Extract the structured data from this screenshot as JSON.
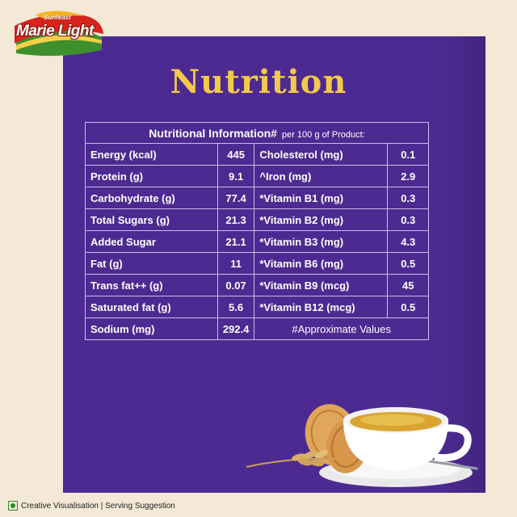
{
  "logo": {
    "brand": "Sunfeast",
    "name": "Marie Light"
  },
  "title": "Nutrition",
  "table": {
    "header": "Nutritional Information#",
    "subheader": "per 100 g of Product:",
    "rows": [
      {
        "left_label": "Energy (kcal)",
        "left_value": "445",
        "right_label": "Cholesterol (mg)",
        "right_value": "0.1"
      },
      {
        "left_label": "Protein (g)",
        "left_value": "9.1",
        "right_label": "^Iron (mg)",
        "right_value": "2.9"
      },
      {
        "left_label": "Carbohydrate (g)",
        "left_value": "77.4",
        "right_label": "*Vitamin B1 (mg)",
        "right_value": "0.3"
      },
      {
        "left_label": "Total Sugars (g)",
        "left_value": "21.3",
        "right_label": "*Vitamin B2 (mg)",
        "right_value": "0.3"
      },
      {
        "left_label": "Added Sugar",
        "left_value": "21.1",
        "right_label": "*Vitamin B3 (mg)",
        "right_value": "4.3"
      },
      {
        "left_label": "Fat (g)",
        "left_value": "11",
        "right_label": "*Vitamin B6 (mg)",
        "right_value": "0.5"
      },
      {
        "left_label": "Trans fat++ (g)",
        "left_value": "0.07",
        "right_label": "*Vitamin B9 (mcg)",
        "right_value": "45"
      },
      {
        "left_label": "Saturated fat (g)",
        "left_value": "5.6",
        "right_label": "*Vitamin B12 (mcg)",
        "right_value": "0.5"
      },
      {
        "left_label": "Sodium (mg)",
        "left_value": "292.4",
        "right_label": "#Approximate Values",
        "right_value": ""
      }
    ]
  },
  "footer": {
    "text": "Creative Visualisation | Serving Suggestion",
    "icon": "veg-mark-icon"
  },
  "colors": {
    "panel": "#4d2a92",
    "background": "#f3e9d6",
    "title": "#f2c94c",
    "veg": "#2a8a2a"
  }
}
